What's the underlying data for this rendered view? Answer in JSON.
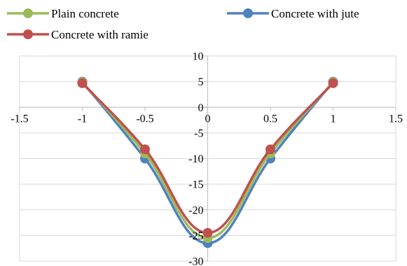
{
  "chart_data": {
    "type": "line",
    "title": "",
    "xlabel": "",
    "ylabel": "",
    "xlim": [
      -1.5,
      1.5
    ],
    "ylim": [
      -30,
      10
    ],
    "x_ticks": [
      -1.5,
      -1,
      -0.5,
      0,
      0.5,
      1,
      1.5
    ],
    "x_tick_labels": [
      "-1.5",
      "-1",
      "-0.5",
      "0",
      "0.5",
      "1",
      "1.5"
    ],
    "y_ticks": [
      10,
      5,
      0,
      -5,
      -10,
      -15,
      -20,
      -25,
      -30
    ],
    "y_tick_labels": [
      "10",
      "5",
      "0",
      "-5",
      "-10",
      "-15",
      "-20",
      "-25",
      "-30"
    ],
    "grid": "horizontal",
    "legend_position": "top",
    "smooth": true,
    "x": [
      -1,
      -0.5,
      0,
      0.5,
      1
    ],
    "series": [
      {
        "name": "Plain concrete",
        "color": "#9BBB59",
        "values": [
          4.9,
          -9.0,
          -25.5,
          -9.0,
          4.9
        ]
      },
      {
        "name": "Concrete with jute",
        "color": "#4F81BD",
        "values": [
          5.0,
          -10.0,
          -26.5,
          -10.0,
          5.0
        ]
      },
      {
        "name": "Concrete with ramie",
        "color": "#C0504D",
        "values": [
          4.7,
          -8.2,
          -24.5,
          -8.2,
          4.7
        ]
      }
    ]
  }
}
